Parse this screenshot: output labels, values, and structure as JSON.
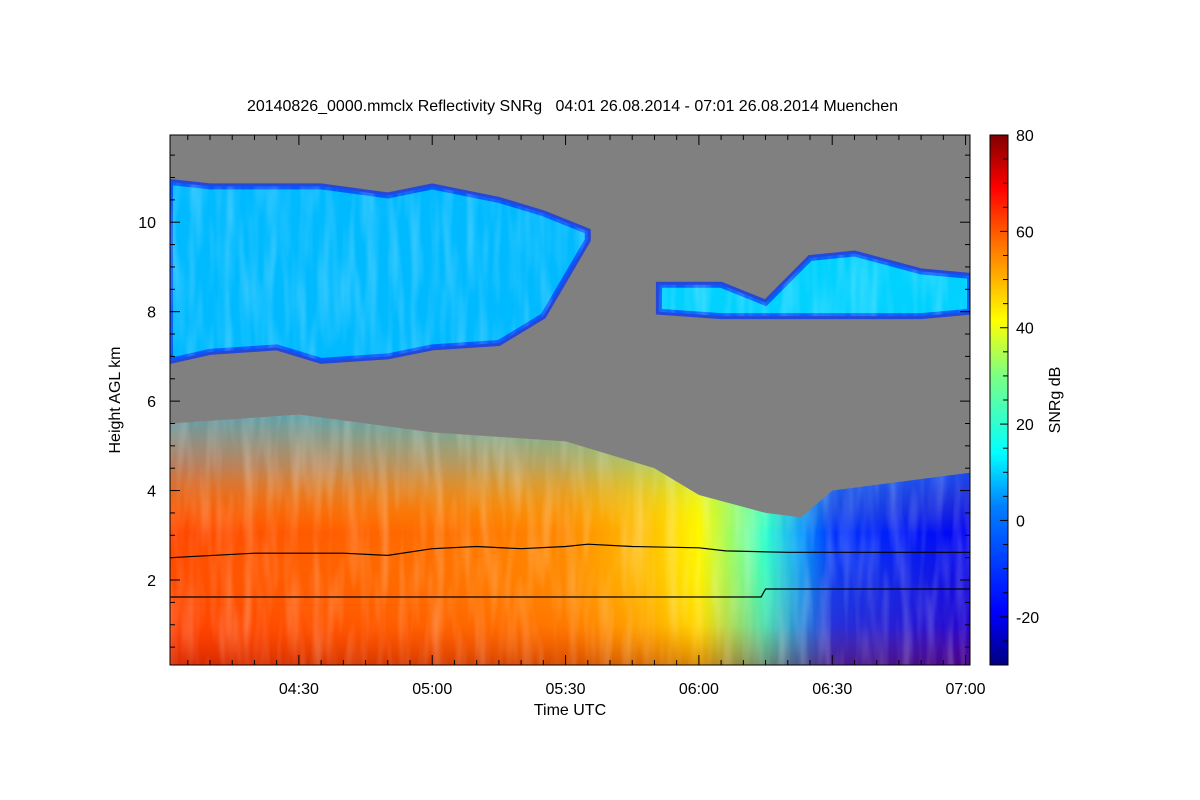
{
  "chart_data": {
    "type": "heatmap",
    "title": "20140826_0000.mmclx Reflectivity SNRg   04:01 26.08.2014 - 07:01 26.08.2014 Muenchen",
    "xlabel": "Time UTC",
    "ylabel": "Height AGL km",
    "colorbar_label": "SNRg dB",
    "xlim_minutes": [
      241,
      421
    ],
    "x_ticks": [
      {
        "label": "04:30",
        "minutes": 270
      },
      {
        "label": "05:00",
        "minutes": 300
      },
      {
        "label": "05:30",
        "minutes": 330
      },
      {
        "label": "06:00",
        "minutes": 360
      },
      {
        "label": "06:30",
        "minutes": 390
      },
      {
        "label": "07:00",
        "minutes": 420
      }
    ],
    "ylim": [
      0.1,
      11.95
    ],
    "y_ticks": [
      2,
      4,
      6,
      8,
      10
    ],
    "colorbar_range": [
      -30,
      80
    ],
    "colorbar_ticks": [
      -20,
      0,
      20,
      40,
      60,
      80
    ],
    "no_data_color": "#808080",
    "colormap": [
      "#000080",
      "#0000ff",
      "#0080ff",
      "#00ffff",
      "#80ff80",
      "#ffff00",
      "#ff8000",
      "#ff0000",
      "#800000"
    ],
    "layers": [
      {
        "name": "boundary layer",
        "x_minutes": [
          241,
          270,
          300,
          330,
          350,
          360,
          375,
          383,
          390,
          421
        ],
        "top_km": [
          5.5,
          5.7,
          5.3,
          5.1,
          4.5,
          3.9,
          3.5,
          3.4,
          4.0,
          4.4
        ],
        "snr_db": [
          62,
          60,
          58,
          55,
          48,
          42,
          20,
          5,
          -10,
          -20
        ]
      },
      {
        "name": "cirrus",
        "x_minutes": [
          241,
          250,
          265,
          275,
          290,
          300,
          315,
          325,
          335
        ],
        "top_km": [
          10.9,
          10.8,
          10.8,
          10.8,
          10.6,
          10.8,
          10.5,
          10.2,
          9.8
        ],
        "bottom_km": [
          6.9,
          7.1,
          7.2,
          6.9,
          7.0,
          7.2,
          7.3,
          7.9,
          9.6
        ],
        "snr_db": 8
      },
      {
        "name": "upper cloud",
        "x_minutes": [
          351,
          365,
          375,
          385,
          395,
          410,
          421
        ],
        "top_km": [
          8.6,
          8.6,
          8.2,
          9.2,
          9.3,
          8.9,
          8.8
        ],
        "bottom_km": [
          8.0,
          7.9,
          7.9,
          7.9,
          7.9,
          7.9,
          8.0
        ],
        "snr_db": 10
      }
    ],
    "lines": [
      {
        "name": "line upper",
        "x_minutes": [
          241,
          260,
          280,
          290,
          300,
          310,
          320,
          330,
          335,
          345,
          360,
          366,
          380,
          421
        ],
        "y_km": [
          2.5,
          2.6,
          2.6,
          2.55,
          2.7,
          2.75,
          2.7,
          2.75,
          2.8,
          2.75,
          2.72,
          2.65,
          2.62,
          2.62
        ]
      },
      {
        "name": "line lower",
        "x_minutes": [
          241,
          300,
          320,
          374,
          375,
          421
        ],
        "y_km": [
          1.62,
          1.62,
          1.62,
          1.62,
          1.8,
          1.8
        ]
      }
    ]
  }
}
